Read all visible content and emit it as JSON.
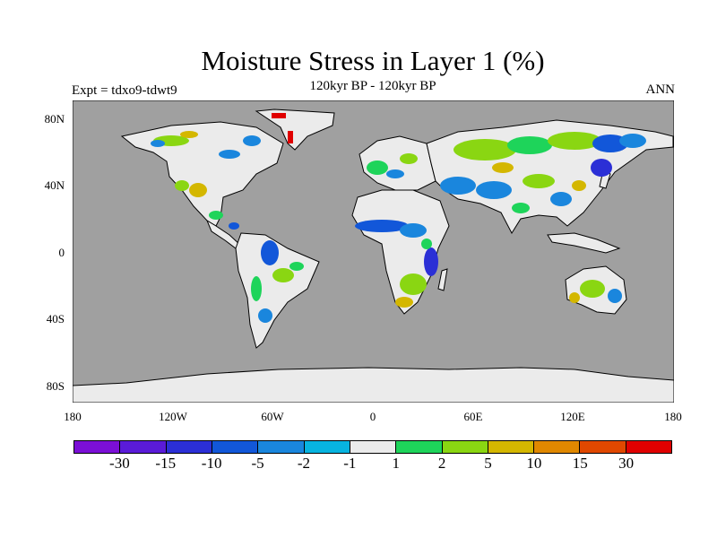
{
  "title": "Moisture Stress in Layer 1 (%)",
  "subtitle": "120kyr BP - 120kyr BP",
  "left_label": "Expt = tdxo9-tdwt9",
  "right_label": "ANN",
  "map": {
    "ocean_color": "#a0a0a0",
    "land_base_color": "#ebebeb",
    "lat_ticks": [
      "80N",
      "40N",
      "0",
      "40S",
      "80S"
    ],
    "lon_ticks": [
      "180",
      "120W",
      "60W",
      "0",
      "60E",
      "120E",
      "180"
    ]
  },
  "colorbar": {
    "colors": [
      "#7b0fd6",
      "#5a1bd8",
      "#2b2fd6",
      "#1257d9",
      "#1a86dd",
      "#07b4e0",
      "#ebebeb",
      "#1ed45a",
      "#8ad612",
      "#d4b700",
      "#e08800",
      "#e04800",
      "#e00000"
    ],
    "labels": [
      "-30",
      "-15",
      "-10",
      "-5",
      "-2",
      "-1",
      "1",
      "2",
      "5",
      "10",
      "15",
      "30"
    ]
  }
}
